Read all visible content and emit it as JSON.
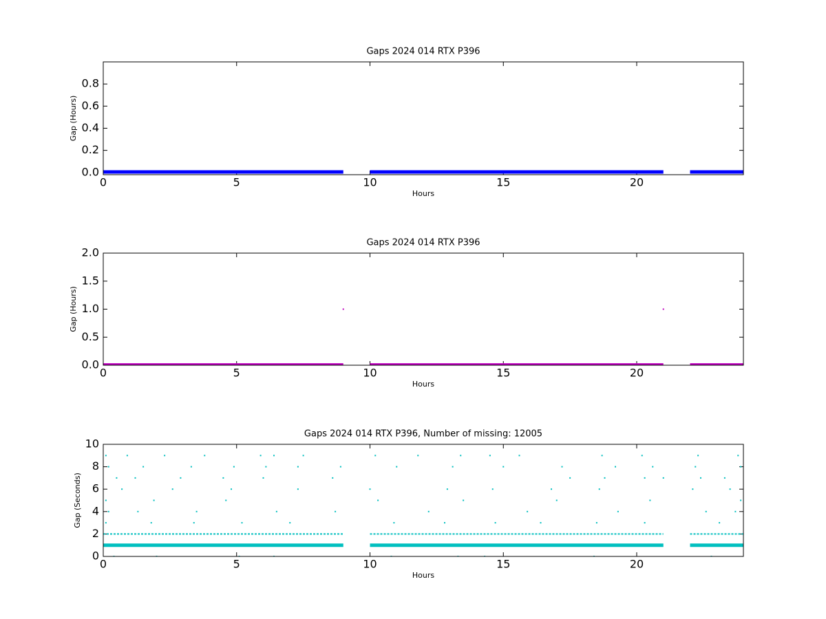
{
  "chart_data": [
    {
      "type": "scatter",
      "title": "Gaps 2024 014 RTX  P396",
      "xlabel": "Hours",
      "ylabel": "Gap (Hours)",
      "xlim": [
        0,
        24
      ],
      "xticks": [
        0,
        5,
        10,
        15,
        20
      ],
      "ylim": [
        -0.02,
        1
      ],
      "yticks": [
        {
          "value": 0,
          "label": "0.0"
        },
        0.2,
        0.4,
        0.6,
        0.8
      ],
      "series": [
        {
          "color": "#0000ff",
          "style": "line",
          "x": [
            0,
            9,
            9.5,
            10,
            21,
            21.5,
            22,
            24
          ],
          "values": [
            0.005,
            0.005,
            null,
            0.005,
            0.005,
            null,
            0.005,
            0.005
          ]
        }
      ]
    },
    {
      "type": "scatter",
      "title": "Gaps 2024 014 RTX  P396",
      "xlabel": "Hours",
      "ylabel": "Gap (Hours)",
      "xlim": [
        0,
        24
      ],
      "xticks": [
        0,
        5,
        10,
        15,
        20
      ],
      "ylim": [
        0,
        2
      ],
      "yticks": [
        {
          "value": 0,
          "label": "0.0"
        },
        0.5,
        {
          "value": 1,
          "label": "1.0"
        },
        1.5,
        {
          "value": 2,
          "label": "2.0"
        }
      ],
      "series": [
        {
          "color": "#bf00bf",
          "style": "line",
          "x": [
            0,
            9,
            9.5,
            10,
            21,
            21.5,
            22,
            24
          ],
          "values": [
            0.005,
            0.005,
            null,
            0.005,
            0.005,
            null,
            0.005,
            0.005
          ]
        },
        {
          "color": "#bf00bf",
          "style": "points",
          "x": [
            9,
            21
          ],
          "values": [
            1,
            1
          ]
        }
      ]
    },
    {
      "type": "scatter",
      "title": "Gaps 2024 014 RTX  P396, Number of missing: 12005",
      "xlabel": "Hours",
      "ylabel": "Gap (Seconds)",
      "xlim": [
        0,
        24
      ],
      "xticks": [
        0,
        5,
        10,
        15,
        20
      ],
      "ylim": [
        0,
        10
      ],
      "yticks": [
        0,
        2,
        4,
        6,
        8,
        10
      ],
      "series": [
        {
          "color": "#00bfbf",
          "style": "line",
          "x": [
            0,
            9,
            9.5,
            10,
            21,
            21.5,
            22,
            24
          ],
          "values": [
            1,
            1,
            null,
            1,
            1,
            null,
            1,
            1
          ]
        },
        {
          "color": "#00bfbf",
          "style": "line",
          "dashed": true,
          "x": [
            0,
            9,
            9.5,
            10,
            21,
            21.5,
            22,
            24
          ],
          "values": [
            2,
            2,
            null,
            2,
            2,
            null,
            2,
            2
          ]
        },
        {
          "color": "#00bfbf",
          "style": "points",
          "x": [
            0.1,
            0.9,
            2.3,
            3.8,
            5.9,
            6.4,
            7.5,
            10.2,
            11.8,
            13.4,
            14.5,
            15.6,
            18.7,
            20.2,
            22.3,
            23.8
          ],
          "values": [
            9,
            9,
            9,
            9,
            9,
            9,
            9,
            9,
            9,
            9,
            9,
            9,
            9,
            9,
            9,
            9
          ]
        },
        {
          "color": "#00bfbf",
          "style": "points",
          "x": [
            0.2,
            1.5,
            3.3,
            4.9,
            6.1,
            7.3,
            8.9,
            11.0,
            13.1,
            15.0,
            17.2,
            19.2,
            20.6,
            22.2,
            23.9
          ],
          "values": [
            8,
            8,
            8,
            8,
            8,
            8,
            8,
            8,
            8,
            8,
            8,
            8,
            8,
            8,
            8
          ]
        },
        {
          "color": "#00bfbf",
          "style": "points",
          "x": [
            0.5,
            1.2,
            2.9,
            4.5,
            6.0,
            8.6,
            17.5,
            18.8,
            20.3,
            21.0,
            22.4,
            23.3
          ],
          "values": [
            7,
            7,
            7,
            7,
            7,
            7,
            7,
            7,
            7,
            7,
            7,
            7
          ]
        },
        {
          "color": "#00bfbf",
          "style": "points",
          "x": [
            0.7,
            2.6,
            4.8,
            7.3,
            10.0,
            12.9,
            14.6,
            16.8,
            18.6,
            22.1,
            23.5
          ],
          "values": [
            6,
            6,
            6,
            6,
            6,
            6,
            6,
            6,
            6,
            6,
            6
          ]
        },
        {
          "color": "#00bfbf",
          "style": "points",
          "x": [
            0.1,
            1.9,
            4.6,
            10.3,
            13.5,
            17.0,
            20.5,
            23.9
          ],
          "values": [
            5,
            5,
            5,
            5,
            5,
            5,
            5,
            5
          ]
        },
        {
          "color": "#00bfbf",
          "style": "points",
          "x": [
            0.2,
            1.3,
            3.5,
            6.5,
            8.7,
            12.2,
            15.9,
            19.3,
            22.6,
            23.7
          ],
          "values": [
            4,
            4,
            4,
            4,
            4,
            4,
            4,
            4,
            4,
            4
          ]
        },
        {
          "color": "#00bfbf",
          "style": "points",
          "x": [
            0.1,
            1.8,
            3.4,
            5.2,
            7.0,
            10.9,
            12.8,
            14.7,
            16.4,
            18.5,
            20.3,
            23.1
          ],
          "values": [
            3,
            3,
            3,
            3,
            3,
            3,
            3,
            3,
            3,
            3,
            3,
            3
          ]
        },
        {
          "color": "#00bfbf",
          "style": "points",
          "x": [
            0.4,
            2.0,
            5.1,
            6.4,
            10.8,
            13.3,
            14.3,
            18.4,
            22.8
          ],
          "values": [
            0,
            0,
            0,
            0,
            0,
            0,
            0,
            0,
            0
          ]
        }
      ]
    }
  ]
}
